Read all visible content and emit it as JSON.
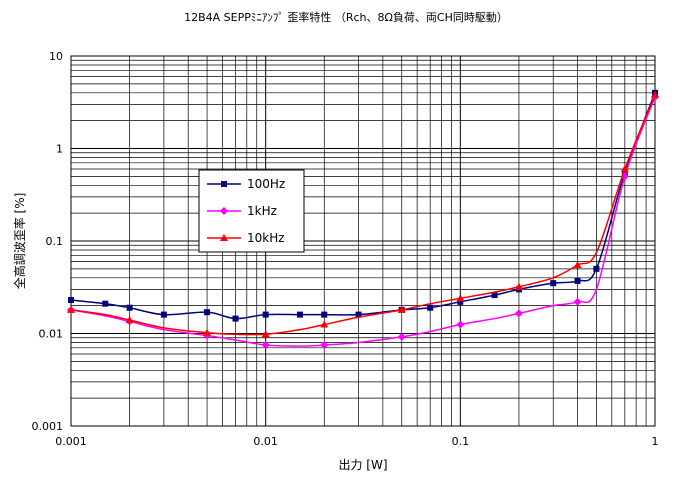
{
  "chart_data": {
    "type": "line",
    "title": "12B4A SEPPﾐﾆｱﾝﾌﾟ 歪率特性 （Rch、8Ω負荷、両CH同時駆動）",
    "xlabel": "出力 [W]",
    "ylabel": "全高調波歪率 [%]",
    "x_scale": "log",
    "y_scale": "log",
    "xlim": [
      0.001,
      1
    ],
    "ylim": [
      0.001,
      10
    ],
    "x_ticks": [
      "0.001",
      "0.01",
      "0.1",
      "1"
    ],
    "y_ticks": [
      "0.001",
      "0.01",
      "0.1",
      "1",
      "10"
    ],
    "grid": true,
    "legend_position": "center-left",
    "series": [
      {
        "name": "100Hz",
        "color": "#000080",
        "marker": "square",
        "x": [
          0.001,
          0.0015,
          0.002,
          0.003,
          0.005,
          0.007,
          0.01,
          0.015,
          0.02,
          0.03,
          0.05,
          0.07,
          0.1,
          0.15,
          0.2,
          0.3,
          0.4,
          0.5,
          0.7,
          1.0
        ],
        "values": [
          0.023,
          0.021,
          0.019,
          0.016,
          0.017,
          0.0145,
          0.016,
          0.016,
          0.016,
          0.016,
          0.018,
          0.019,
          0.022,
          0.026,
          0.03,
          0.035,
          0.037,
          0.05,
          0.55,
          4.0
        ]
      },
      {
        "name": "1kHz",
        "color": "#ff00ff",
        "marker": "diamond",
        "x": [
          0.001,
          0.0015,
          0.002,
          0.003,
          0.005,
          0.007,
          0.01,
          0.015,
          0.02,
          0.03,
          0.05,
          0.07,
          0.1,
          0.15,
          0.2,
          0.3,
          0.4,
          0.5,
          0.7,
          1.0
        ],
        "values": [
          0.018,
          0.0155,
          0.0135,
          0.011,
          0.0095,
          0.0085,
          0.0075,
          0.0073,
          0.0075,
          0.008,
          0.0092,
          0.0105,
          0.0125,
          0.0145,
          0.0165,
          0.02,
          0.022,
          0.03,
          0.5,
          3.6
        ]
      },
      {
        "name": "10kHz",
        "color": "#ff0000",
        "marker": "triangle",
        "x": [
          0.001,
          0.0015,
          0.002,
          0.003,
          0.005,
          0.007,
          0.01,
          0.015,
          0.02,
          0.03,
          0.05,
          0.07,
          0.1,
          0.15,
          0.2,
          0.3,
          0.4,
          0.5,
          0.7,
          1.0
        ],
        "values": [
          0.018,
          0.016,
          0.014,
          0.0115,
          0.0102,
          0.0098,
          0.0098,
          0.011,
          0.0125,
          0.015,
          0.018,
          0.021,
          0.024,
          0.028,
          0.032,
          0.04,
          0.055,
          0.075,
          0.6,
          3.8
        ]
      }
    ]
  }
}
